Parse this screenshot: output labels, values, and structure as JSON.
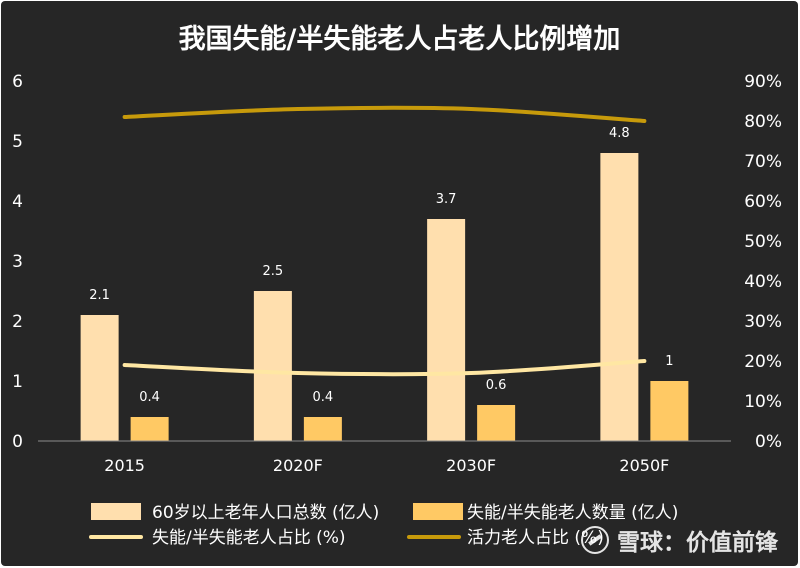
{
  "chart_data": {
    "type": "bar",
    "title": "我国失能/半失能老人占老人比例增加",
    "categories": [
      "2015",
      "2020F",
      "2030F",
      "2050F"
    ],
    "series": [
      {
        "name": "60岁以上老年人口总数 (亿人)",
        "kind": "bar",
        "axis": "left",
        "values": [
          2.1,
          2.5,
          3.7,
          4.8
        ],
        "labels": [
          "2.1",
          "2.5",
          "3.7",
          "4.8"
        ],
        "color": "#FFDFAE"
      },
      {
        "name": "失能/半失能老人数量 (亿人)",
        "kind": "bar",
        "axis": "left",
        "values": [
          0.4,
          0.4,
          0.6,
          1.0
        ],
        "labels": [
          "0.4",
          "0.4",
          "0.6",
          "1"
        ],
        "color": "#FFC964"
      },
      {
        "name": "失能/半失能老人占比 (%)",
        "kind": "line",
        "axis": "right",
        "values": [
          19,
          17,
          17,
          20
        ],
        "color": "#FFE7A3"
      },
      {
        "name": "活力老人占比 (%)",
        "kind": "line",
        "axis": "right",
        "values": [
          81,
          83,
          83,
          80
        ],
        "color": "#C79A0B"
      }
    ],
    "y_left": {
      "min": 0,
      "max": 6,
      "ticks": [
        "0",
        "1",
        "2",
        "3",
        "4",
        "5",
        "6"
      ]
    },
    "y_right": {
      "min": 0,
      "max": 90,
      "ticks": [
        "0%",
        "10%",
        "20%",
        "30%",
        "40%",
        "50%",
        "60%",
        "70%",
        "80%",
        "90%"
      ]
    },
    "grid": false,
    "legend": "bottom"
  },
  "watermark": {
    "text": "雪球：价值前锋"
  }
}
